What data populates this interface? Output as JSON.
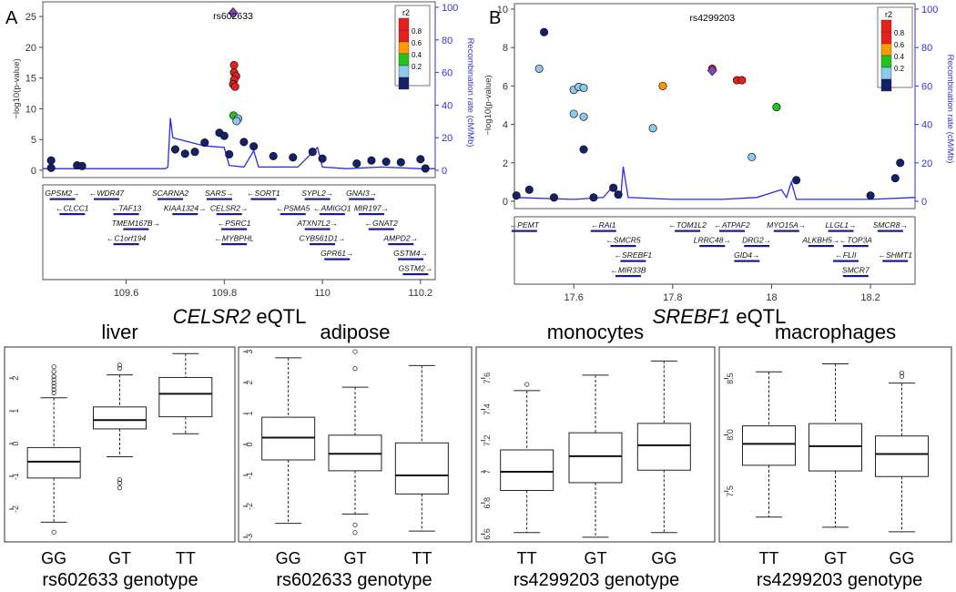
{
  "panels": {
    "A": {
      "letter": "A",
      "eqtl_gene": "CELSR2",
      "eqtl_suffix": " eQTL",
      "xlabel_genotype": "rs602633 genotype"
    },
    "B": {
      "letter": "B",
      "eqtl_gene": "SREBF1",
      "eqtl_suffix": " eQTL",
      "xlabel_genotype": "rs4299203 genotype"
    }
  },
  "colors": {
    "r2_0.8": "#e8201c",
    "r2_0.6": "#ff9a00",
    "r2_0.4": "#21c41c",
    "r2_0.2": "#8ec9ec",
    "r2_0.0": "#15206b",
    "lead_snp": "#8a3fbf",
    "recomb_line": "#2a2ae6",
    "recomb_axis": "#3333cc",
    "gene_bar": "#1a1a8c"
  },
  "chart_data": [
    {
      "type": "scatter",
      "name": "CELSR2 regional association plot",
      "lead_snp": "rs602633",
      "ylabel": "−log10(p-value)",
      "y2label": "Recombination rate (cM/Mb)",
      "xlim": [
        109.43,
        110.23
      ],
      "ylim": [
        0,
        26.5
      ],
      "y2lim": [
        0,
        100
      ],
      "xticks": [
        109.6,
        109.8,
        110,
        110.2
      ],
      "xtick_labels": [
        "109.6",
        "109.8",
        "110",
        "110.2"
      ],
      "yticks": [
        0,
        5,
        10,
        15,
        20,
        25
      ],
      "y2ticks": [
        0,
        20,
        40,
        60,
        80,
        100
      ],
      "legend": {
        "title": "r2",
        "labels": [
          "0.8",
          "0.6",
          "0.4",
          "0.2"
        ]
      },
      "lead_point": {
        "x": 109.818,
        "y": 25.6
      },
      "points": [
        {
          "x": 109.82,
          "y": 17.1,
          "r2": "0.8"
        },
        {
          "x": 109.82,
          "y": 15.9,
          "r2": "0.8"
        },
        {
          "x": 109.824,
          "y": 15.3,
          "r2": "0.8"
        },
        {
          "x": 109.82,
          "y": 14.7,
          "r2": "0.8"
        },
        {
          "x": 109.818,
          "y": 14.0,
          "r2": "0.8"
        },
        {
          "x": 109.822,
          "y": 13.6,
          "r2": "0.8"
        },
        {
          "x": 109.819,
          "y": 8.9,
          "r2": "0.4"
        },
        {
          "x": 109.828,
          "y": 8.4,
          "r2": "0.2"
        },
        {
          "x": 109.825,
          "y": 8.0,
          "r2": "0.2"
        },
        {
          "x": 109.447,
          "y": 1.6,
          "r2": "0.0"
        },
        {
          "x": 109.447,
          "y": 0.4,
          "r2": "0.0"
        },
        {
          "x": 109.5,
          "y": 0.8,
          "r2": "0.0"
        },
        {
          "x": 109.51,
          "y": 0.7,
          "r2": "0.0"
        },
        {
          "x": 109.7,
          "y": 3.4,
          "r2": "0.0"
        },
        {
          "x": 109.72,
          "y": 2.7,
          "r2": "0.0"
        },
        {
          "x": 109.74,
          "y": 3.0,
          "r2": "0.0"
        },
        {
          "x": 109.76,
          "y": 4.5,
          "r2": "0.0"
        },
        {
          "x": 109.79,
          "y": 6.1,
          "r2": "0.0"
        },
        {
          "x": 109.8,
          "y": 5.6,
          "r2": "0.0"
        },
        {
          "x": 109.81,
          "y": 2.6,
          "r2": "0.0"
        },
        {
          "x": 109.84,
          "y": 4.6,
          "r2": "0.0"
        },
        {
          "x": 109.86,
          "y": 3.9,
          "r2": "0.0"
        },
        {
          "x": 109.9,
          "y": 2.3,
          "r2": "0.0"
        },
        {
          "x": 109.94,
          "y": 2.1,
          "r2": "0.0"
        },
        {
          "x": 109.98,
          "y": 3.0,
          "r2": "0.0"
        },
        {
          "x": 110.0,
          "y": 1.9,
          "r2": "0.0"
        },
        {
          "x": 110.07,
          "y": 1.1,
          "r2": "0.0"
        },
        {
          "x": 110.1,
          "y": 1.6,
          "r2": "0.0"
        },
        {
          "x": 110.13,
          "y": 1.4,
          "r2": "0.0"
        },
        {
          "x": 110.16,
          "y": 1.3,
          "r2": "0.0"
        },
        {
          "x": 110.2,
          "y": 1.8,
          "r2": "0.0"
        },
        {
          "x": 110.21,
          "y": 0.3,
          "r2": "0.0"
        }
      ],
      "recomb": [
        [
          109.43,
          1
        ],
        [
          109.68,
          1
        ],
        [
          109.685,
          2
        ],
        [
          109.69,
          32
        ],
        [
          109.695,
          20
        ],
        [
          109.72,
          18
        ],
        [
          109.76,
          15
        ],
        [
          109.8,
          14
        ],
        [
          109.81,
          3
        ],
        [
          109.84,
          2
        ],
        [
          109.86,
          12
        ],
        [
          109.87,
          2
        ],
        [
          109.95,
          2
        ],
        [
          109.99,
          14
        ],
        [
          110.0,
          2
        ],
        [
          110.05,
          1
        ],
        [
          110.12,
          2
        ],
        [
          110.2,
          1
        ],
        [
          110.23,
          1
        ]
      ],
      "genes": [
        {
          "name": "GPSM2",
          "x": 109.47,
          "row": 0,
          "dir": "r"
        },
        {
          "name": "WDR47",
          "x": 109.56,
          "row": 0,
          "dir": "l"
        },
        {
          "name": "SCARNA2",
          "x": 109.69,
          "row": 0,
          "dir": ""
        },
        {
          "name": "SARS",
          "x": 109.79,
          "row": 0,
          "dir": "r"
        },
        {
          "name": "SORT1",
          "x": 109.88,
          "row": 0,
          "dir": "l"
        },
        {
          "name": "SYPL2",
          "x": 109.99,
          "row": 0,
          "dir": "r"
        },
        {
          "name": "GNAI3",
          "x": 110.08,
          "row": 0,
          "dir": "r"
        },
        {
          "name": "CLCC1",
          "x": 109.49,
          "row": 1,
          "dir": "l"
        },
        {
          "name": "TAF13",
          "x": 109.6,
          "row": 1,
          "dir": "l"
        },
        {
          "name": "KIAA1324",
          "x": 109.72,
          "row": 1,
          "dir": "r"
        },
        {
          "name": "CELSR2",
          "x": 109.81,
          "row": 1,
          "dir": "r"
        },
        {
          "name": "PSMA5",
          "x": 109.94,
          "row": 1,
          "dir": "l"
        },
        {
          "name": "AMIGO1",
          "x": 110.02,
          "row": 1,
          "dir": "l"
        },
        {
          "name": "MIR197",
          "x": 110.1,
          "row": 1,
          "dir": "r"
        },
        {
          "name": "TMEM167B",
          "x": 109.62,
          "row": 2,
          "dir": "r"
        },
        {
          "name": "PSRC1",
          "x": 109.82,
          "row": 2,
          "dir": "l"
        },
        {
          "name": "ATXN7L2",
          "x": 109.99,
          "row": 2,
          "dir": "r"
        },
        {
          "name": "GNAT2",
          "x": 110.12,
          "row": 2,
          "dir": "l"
        },
        {
          "name": "C1orf194",
          "x": 109.6,
          "row": 3,
          "dir": "l"
        },
        {
          "name": "MYBPHL",
          "x": 109.82,
          "row": 3,
          "dir": "l"
        },
        {
          "name": "CYB561D1",
          "x": 110.0,
          "row": 3,
          "dir": "r"
        },
        {
          "name": "AMPD2",
          "x": 110.16,
          "row": 3,
          "dir": "r"
        },
        {
          "name": "GPR61",
          "x": 110.03,
          "row": 4,
          "dir": "r"
        },
        {
          "name": "GSTM4",
          "x": 110.18,
          "row": 4,
          "dir": "r"
        },
        {
          "name": "GSTM2",
          "x": 110.19,
          "row": 5,
          "dir": "r"
        }
      ]
    },
    {
      "type": "scatter",
      "name": "SREBF1 regional association plot",
      "lead_snp": "rs4299203",
      "ylabel": "−log10(p-value)",
      "y2label": "Recombination rate (cM/Mb)",
      "xlim": [
        17.48,
        18.29
      ],
      "ylim": [
        0,
        10
      ],
      "y2lim": [
        0,
        100
      ],
      "xticks": [
        17.6,
        17.8,
        18,
        18.2
      ],
      "xtick_labels": [
        "17.6",
        "17.8",
        "18",
        "18.2"
      ],
      "yticks": [
        0,
        2,
        4,
        6,
        8,
        10
      ],
      "y2ticks": [
        0,
        20,
        40,
        60,
        80,
        100
      ],
      "legend": {
        "title": "r2",
        "labels": [
          "0.8",
          "0.6",
          "0.4",
          "0.2"
        ]
      },
      "lead_point": {
        "x": 17.88,
        "y": 6.8
      },
      "points": [
        {
          "x": 17.484,
          "y": 0.3,
          "r2": "0.0"
        },
        {
          "x": 17.51,
          "y": 0.6,
          "r2": "0.0"
        },
        {
          "x": 17.54,
          "y": 8.8,
          "r2": "0.0"
        },
        {
          "x": 17.53,
          "y": 6.9,
          "r2": "0.2"
        },
        {
          "x": 17.56,
          "y": 0.2,
          "r2": "0.0"
        },
        {
          "x": 17.6,
          "y": 5.8,
          "r2": "0.2"
        },
        {
          "x": 17.61,
          "y": 5.95,
          "r2": "0.2"
        },
        {
          "x": 17.62,
          "y": 5.9,
          "r2": "0.2"
        },
        {
          "x": 17.6,
          "y": 4.55,
          "r2": "0.2"
        },
        {
          "x": 17.62,
          "y": 4.4,
          "r2": "0.2"
        },
        {
          "x": 17.62,
          "y": 2.7,
          "r2": "0.0"
        },
        {
          "x": 17.64,
          "y": 0.2,
          "r2": "0.0"
        },
        {
          "x": 17.68,
          "y": 0.7,
          "r2": "0.0"
        },
        {
          "x": 17.69,
          "y": 0.35,
          "r2": "0.0"
        },
        {
          "x": 17.76,
          "y": 3.8,
          "r2": "0.2"
        },
        {
          "x": 17.78,
          "y": 6.0,
          "r2": "0.6"
        },
        {
          "x": 17.88,
          "y": 6.9,
          "r2": "0.8"
        },
        {
          "x": 17.93,
          "y": 6.3,
          "r2": "0.8"
        },
        {
          "x": 17.94,
          "y": 6.3,
          "r2": "0.8"
        },
        {
          "x": 17.96,
          "y": 2.3,
          "r2": "0.2"
        },
        {
          "x": 18.01,
          "y": 4.9,
          "r2": "0.4"
        },
        {
          "x": 18.05,
          "y": 1.1,
          "r2": "0.0"
        },
        {
          "x": 18.2,
          "y": 0.3,
          "r2": "0.0"
        },
        {
          "x": 18.25,
          "y": 1.2,
          "r2": "0.0"
        },
        {
          "x": 18.26,
          "y": 2.0,
          "r2": "0.0"
        }
      ],
      "recomb": [
        [
          17.48,
          2
        ],
        [
          17.6,
          1
        ],
        [
          17.66,
          2
        ],
        [
          17.68,
          8
        ],
        [
          17.69,
          3
        ],
        [
          17.695,
          2
        ],
        [
          17.7,
          18
        ],
        [
          17.71,
          2
        ],
        [
          17.8,
          1
        ],
        [
          17.9,
          1
        ],
        [
          17.97,
          2
        ],
        [
          18.02,
          6
        ],
        [
          18.03,
          2
        ],
        [
          18.04,
          10
        ],
        [
          18.05,
          1
        ],
        [
          18.1,
          1
        ],
        [
          18.2,
          1
        ],
        [
          18.29,
          2
        ]
      ],
      "genes": [
        {
          "name": "PEMT",
          "x": 17.5,
          "row": 0,
          "dir": "l"
        },
        {
          "name": "RAI1",
          "x": 17.66,
          "row": 0,
          "dir": "l"
        },
        {
          "name": "TOM1L2",
          "x": 17.83,
          "row": 0,
          "dir": "l"
        },
        {
          "name": "ATPAF2",
          "x": 17.92,
          "row": 0,
          "dir": "l"
        },
        {
          "name": "MYO15A",
          "x": 18.03,
          "row": 0,
          "dir": "r"
        },
        {
          "name": "LLGL1",
          "x": 18.14,
          "row": 0,
          "dir": "r"
        },
        {
          "name": "SMCR8",
          "x": 18.24,
          "row": 0,
          "dir": "r"
        },
        {
          "name": "SMCR5",
          "x": 17.7,
          "row": 1,
          "dir": "l"
        },
        {
          "name": "LRRC48",
          "x": 17.88,
          "row": 1,
          "dir": "r"
        },
        {
          "name": "DRG2",
          "x": 17.97,
          "row": 1,
          "dir": "r"
        },
        {
          "name": "ALKBH5",
          "x": 18.1,
          "row": 1,
          "dir": "r"
        },
        {
          "name": "TOP3A",
          "x": 18.17,
          "row": 1,
          "dir": "l"
        },
        {
          "name": "SREBF1",
          "x": 17.72,
          "row": 2,
          "dir": "l"
        },
        {
          "name": "GID4",
          "x": 17.95,
          "row": 2,
          "dir": "r"
        },
        {
          "name": "FLII",
          "x": 18.15,
          "row": 2,
          "dir": "l"
        },
        {
          "name": "SHMT1",
          "x": 18.25,
          "row": 2,
          "dir": "l"
        },
        {
          "name": "MIR33B",
          "x": 17.71,
          "row": 3,
          "dir": "l"
        },
        {
          "name": "SMCR7",
          "x": 18.17,
          "row": 3,
          "dir": ""
        }
      ]
    },
    {
      "type": "box",
      "title": "liver",
      "categories": [
        "GG",
        "GT",
        "TT"
      ],
      "ylim": [
        -3.0,
        2.95
      ],
      "yticks": [
        -2,
        -1,
        0,
        1,
        2
      ],
      "xlabel": "rs602633 genotype",
      "boxes": [
        {
          "min": -2.4,
          "q1": -1.05,
          "median": -0.55,
          "q3": -0.12,
          "max": 1.4,
          "outliers": [
            1.55,
            1.65,
            1.75,
            1.85,
            1.95,
            2.05,
            2.2,
            2.35,
            -2.7
          ]
        },
        {
          "min": -0.4,
          "q1": 0.45,
          "median": 0.72,
          "q3": 1.12,
          "max": 2.1,
          "outliers": [
            2.3,
            2.4,
            -1.1,
            -1.2,
            -1.35
          ]
        },
        {
          "min": 0.3,
          "q1": 0.82,
          "median": 1.52,
          "q3": 2.02,
          "max": 2.75,
          "outliers": []
        }
      ]
    },
    {
      "type": "box",
      "title": "adipose",
      "categories": [
        "GG",
        "GT",
        "TT"
      ],
      "ylim": [
        -3.15,
        3.15
      ],
      "yticks": [
        -3,
        -2,
        -1,
        0,
        1,
        2,
        3
      ],
      "xlabel": "rs602633 genotype",
      "boxes": [
        {
          "min": -2.55,
          "q1": -0.5,
          "median": 0.22,
          "q3": 0.88,
          "max": 2.8,
          "outliers": []
        },
        {
          "min": -2.25,
          "q1": -0.85,
          "median": -0.3,
          "q3": 0.3,
          "max": 1.85,
          "outliers": [
            2.45,
            3.0,
            -2.6,
            -2.85
          ]
        },
        {
          "min": -2.8,
          "q1": -1.6,
          "median": -1.0,
          "q3": 0.05,
          "max": 2.55,
          "outliers": []
        }
      ]
    },
    {
      "type": "box",
      "title": "monocytes",
      "categories": [
        "TT",
        "GT",
        "GG"
      ],
      "ylim": [
        6.55,
        7.8
      ],
      "yticks": [
        6.6,
        6.8,
        7.0,
        7.2,
        7.4,
        7.6
      ],
      "xlabel": "rs4299203 genotype",
      "boxes": [
        {
          "min": 6.61,
          "q1": 6.88,
          "median": 7.0,
          "q3": 7.14,
          "max": 7.52,
          "outliers": [
            7.56
          ]
        },
        {
          "min": 6.58,
          "q1": 6.93,
          "median": 7.1,
          "q3": 7.25,
          "max": 7.62,
          "outliers": []
        },
        {
          "min": 6.61,
          "q1": 7.01,
          "median": 7.17,
          "q3": 7.31,
          "max": 7.71,
          "outliers": []
        }
      ]
    },
    {
      "type": "box",
      "title": "macrophages",
      "categories": [
        "TT",
        "GT",
        "GG"
      ],
      "ylim": [
        7.05,
        8.78
      ],
      "yticks": [
        7.5,
        8.0,
        8.5
      ],
      "ytick_labels": [
        "7.5",
        "8.0",
        "8.5"
      ],
      "xlabel": "rs4299203 genotype",
      "boxes": [
        {
          "min": 7.27,
          "q1": 7.73,
          "median": 7.92,
          "q3": 8.08,
          "max": 8.56,
          "outliers": []
        },
        {
          "min": 7.18,
          "q1": 7.68,
          "median": 7.9,
          "q3": 8.1,
          "max": 8.63,
          "outliers": []
        },
        {
          "min": 7.14,
          "q1": 7.63,
          "median": 7.83,
          "q3": 7.99,
          "max": 8.46,
          "outliers": [
            8.52,
            8.55
          ]
        }
      ]
    }
  ]
}
